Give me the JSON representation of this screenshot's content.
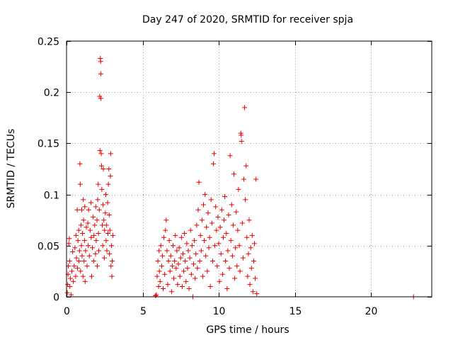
{
  "chart_data": {
    "type": "scatter",
    "title": "Day 247 of 2020, SRMTID for receiver spja",
    "xlabel": "GPS time / hours",
    "ylabel": "SRMTID / TECUs",
    "xlim": [
      0,
      24
    ],
    "ylim": [
      0,
      0.25
    ],
    "xticks": [
      0,
      5,
      10,
      15,
      20
    ],
    "yticks": [
      0,
      0.05,
      0.1,
      0.15,
      0.2,
      0.25
    ],
    "xtick_labels": [
      "0",
      "5",
      "10",
      "15",
      "20"
    ],
    "ytick_labels": [
      "0",
      "0.05",
      "0.1",
      "0.15",
      "0.2",
      "0.25"
    ],
    "grid": true,
    "grid_style": "dotted",
    "marker": "plus",
    "series": [
      {
        "color": "#e60000",
        "points": [
          [
            0.05,
            0.004
          ],
          [
            0.08,
            0.012
          ],
          [
            0.1,
            0.022
          ],
          [
            0.12,
            0.03
          ],
          [
            0.15,
            0.052
          ],
          [
            0.18,
            0.057
          ],
          [
            0.2,
            0.035
          ],
          [
            0.22,
            0.01
          ],
          [
            0.25,
            0.018
          ],
          [
            0.3,
            0.002
          ],
          [
            0.35,
            0.025
          ],
          [
            0.4,
            0.044
          ],
          [
            0.45,
            0.015
          ],
          [
            0.5,
            0.03
          ],
          [
            0.55,
            0.048
          ],
          [
            0.6,
            0.02
          ],
          [
            0.62,
            0.06
          ],
          [
            0.65,
            0.038
          ],
          [
            0.7,
            0.085
          ],
          [
            0.72,
            0.028
          ],
          [
            0.75,
            0.055
          ],
          [
            0.8,
            0.065
          ],
          [
            0.82,
            0.035
          ],
          [
            0.85,
            0.045
          ],
          [
            0.88,
            0.13
          ],
          [
            0.9,
            0.11
          ],
          [
            0.92,
            0.025
          ],
          [
            0.95,
            0.07
          ],
          [
            0.98,
            0.05
          ],
          [
            1.0,
            0.085
          ],
          [
            1.02,
            0.04
          ],
          [
            1.05,
            0.062
          ],
          [
            1.08,
            0.02
          ],
          [
            1.1,
            0.095
          ],
          [
            1.12,
            0.075
          ],
          [
            1.15,
            0.035
          ],
          [
            1.18,
            0.055
          ],
          [
            1.2,
            0.088
          ],
          [
            1.22,
            0.015
          ],
          [
            1.25,
            0.045
          ],
          [
            1.3,
            0.068
          ],
          [
            1.35,
            0.03
          ],
          [
            1.4,
            0.072
          ],
          [
            1.42,
            0.05
          ],
          [
            1.45,
            0.085
          ],
          [
            1.5,
            0.04
          ],
          [
            1.55,
            0.065
          ],
          [
            1.6,
            0.092
          ],
          [
            1.62,
            0.058
          ],
          [
            1.65,
            0.02
          ],
          [
            1.7,
            0.048
          ],
          [
            1.75,
            0.078
          ],
          [
            1.78,
            0.035
          ],
          [
            1.8,
            0.06
          ],
          [
            1.85,
            0.07
          ],
          [
            1.9,
            0.042
          ],
          [
            1.92,
            0.088
          ],
          [
            1.95,
            0.055
          ],
          [
            2.0,
            0.075
          ],
          [
            2.02,
            0.03
          ],
          [
            2.05,
            0.095
          ],
          [
            2.08,
            0.11
          ],
          [
            2.1,
            0.062
          ],
          [
            2.12,
            0.045
          ],
          [
            2.15,
            0.085
          ],
          [
            2.18,
            0.196
          ],
          [
            2.2,
            0.143
          ],
          [
            2.22,
            0.233
          ],
          [
            2.24,
            0.23
          ],
          [
            2.25,
            0.218
          ],
          [
            2.26,
            0.194
          ],
          [
            2.28,
            0.14
          ],
          [
            2.3,
            0.128
          ],
          [
            2.32,
            0.105
          ],
          [
            2.35,
            0.07
          ],
          [
            2.38,
            0.05
          ],
          [
            2.4,
            0.09
          ],
          [
            2.42,
            0.125
          ],
          [
            2.45,
            0.075
          ],
          [
            2.48,
            0.038
          ],
          [
            2.5,
            0.065
          ],
          [
            2.55,
            0.082
          ],
          [
            2.58,
            0.1
          ],
          [
            2.6,
            0.055
          ],
          [
            2.62,
            0.07
          ],
          [
            2.65,
            0.045
          ],
          [
            2.7,
            0.092
          ],
          [
            2.72,
            0.062
          ],
          [
            2.75,
            0.11
          ],
          [
            2.78,
            0.125
          ],
          [
            2.8,
            0.08
          ],
          [
            2.82,
            0.042
          ],
          [
            2.85,
            0.065
          ],
          [
            2.88,
            0.118
          ],
          [
            2.9,
            0.14
          ],
          [
            2.92,
            0.03
          ],
          [
            2.95,
            0.05
          ],
          [
            2.98,
            0.02
          ],
          [
            3.0,
            0.035
          ],
          [
            3.05,
            0.06
          ],
          [
            5.85,
            0.001
          ],
          [
            5.9,
            0.002
          ],
          [
            5.95,
            0.02
          ],
          [
            6.0,
            0.035
          ],
          [
            6.05,
            0.01
          ],
          [
            6.08,
            0.045
          ],
          [
            6.1,
            0.025
          ],
          [
            6.15,
            0.015
          ],
          [
            6.2,
            0.05
          ],
          [
            6.25,
            0.03
          ],
          [
            6.3,
            0.04
          ],
          [
            6.35,
            0.008
          ],
          [
            6.4,
            0.058
          ],
          [
            6.45,
            0.022
          ],
          [
            6.5,
            0.065
          ],
          [
            6.55,
            0.075
          ],
          [
            6.6,
            0.045
          ],
          [
            6.65,
            0.012
          ],
          [
            6.7,
            0.035
          ],
          [
            6.75,
            0.055
          ],
          [
            6.8,
            0.025
          ],
          [
            6.85,
            0.04
          ],
          [
            6.9,
            0.005
          ],
          [
            6.95,
            0.03
          ],
          [
            7.0,
            0.05
          ],
          [
            7.05,
            0.018
          ],
          [
            7.1,
            0.035
          ],
          [
            7.15,
            0.06
          ],
          [
            7.2,
            0.028
          ],
          [
            7.25,
            0.045
          ],
          [
            7.3,
            0.012
          ],
          [
            7.35,
            0.032
          ],
          [
            7.4,
            0.048
          ],
          [
            7.45,
            0.02
          ],
          [
            7.5,
            0.038
          ],
          [
            7.55,
            0.058
          ],
          [
            7.6,
            0.01
          ],
          [
            7.65,
            0.042
          ],
          [
            7.7,
            0.025
          ],
          [
            7.75,
            0.062
          ],
          [
            7.8,
            0.035
          ],
          [
            7.85,
            0.015
          ],
          [
            7.9,
            0.052
          ],
          [
            7.95,
            0.028
          ],
          [
            8.0,
            0.045
          ],
          [
            8.05,
            0.008
          ],
          [
            8.1,
            0.038
          ],
          [
            8.15,
            0.065
          ],
          [
            8.2,
            0.022
          ],
          [
            8.25,
            0.05
          ],
          [
            8.3,
            0.0
          ],
          [
            8.35,
            0.032
          ],
          [
            8.4,
            0.055
          ],
          [
            8.45,
            0.018
          ],
          [
            8.5,
            0.042
          ],
          [
            8.55,
            0.07
          ],
          [
            8.6,
            0.028
          ],
          [
            8.65,
            0.085
          ],
          [
            8.7,
            0.112
          ],
          [
            8.75,
            0.035
          ],
          [
            8.8,
            0.06
          ],
          [
            8.85,
            0.045
          ],
          [
            8.9,
            0.075
          ],
          [
            8.95,
            0.02
          ],
          [
            9.0,
            0.09
          ],
          [
            9.05,
            0.055
          ],
          [
            9.1,
            0.1
          ],
          [
            9.15,
            0.04
          ],
          [
            9.2,
            0.068
          ],
          [
            9.25,
            0.025
          ],
          [
            9.3,
            0.082
          ],
          [
            9.35,
            0.048
          ],
          [
            9.4,
            0.058
          ],
          [
            9.45,
            0.01
          ],
          [
            9.5,
            0.095
          ],
          [
            9.55,
            0.072
          ],
          [
            9.6,
            0.035
          ],
          [
            9.65,
            0.13
          ],
          [
            9.7,
            0.14
          ],
          [
            9.75,
            0.05
          ],
          [
            9.8,
            0.088
          ],
          [
            9.85,
            0.065
          ],
          [
            9.9,
            0.03
          ],
          [
            9.95,
            0.078
          ],
          [
            10.0,
            0.052
          ],
          [
            10.05,
            0.015
          ],
          [
            10.1,
            0.068
          ],
          [
            10.15,
            0.042
          ],
          [
            10.2,
            0.085
          ],
          [
            10.25,
            0.022
          ],
          [
            10.3,
            0.058
          ],
          [
            10.35,
            0.075
          ],
          [
            10.4,
            0.098
          ],
          [
            10.45,
            0.035
          ],
          [
            10.5,
            0.062
          ],
          [
            10.55,
            0.008
          ],
          [
            10.6,
            0.045
          ],
          [
            10.65,
            0.08
          ],
          [
            10.7,
            0.028
          ],
          [
            10.75,
            0.138
          ],
          [
            10.8,
            0.055
          ],
          [
            10.85,
            0.09
          ],
          [
            10.9,
            0.04
          ],
          [
            10.95,
            0.07
          ],
          [
            11.0,
            0.12
          ],
          [
            11.05,
            0.018
          ],
          [
            11.1,
            0.048
          ],
          [
            11.15,
            0.083
          ],
          [
            11.2,
            0.03
          ],
          [
            11.25,
            0.065
          ],
          [
            11.3,
            0.105
          ],
          [
            11.35,
            0.05
          ],
          [
            11.4,
            0.025
          ],
          [
            11.45,
            0.16
          ],
          [
            11.48,
            0.158
          ],
          [
            11.5,
            0.152
          ],
          [
            11.55,
            0.072
          ],
          [
            11.6,
            0.038
          ],
          [
            11.65,
            0.115
          ],
          [
            11.7,
            0.185
          ],
          [
            11.75,
            0.095
          ],
          [
            11.8,
            0.128
          ],
          [
            11.85,
            0.058
          ],
          [
            11.9,
            0.02
          ],
          [
            11.95,
            0.042
          ],
          [
            12.0,
            0.075
          ],
          [
            12.05,
            0.012
          ],
          [
            12.1,
            0.048
          ],
          [
            12.15,
            0.028
          ],
          [
            12.2,
            0.06
          ],
          [
            12.25,
            0.005
          ],
          [
            12.3,
            0.035
          ],
          [
            12.35,
            0.052
          ],
          [
            12.4,
            0.018
          ],
          [
            12.45,
            0.115
          ],
          [
            12.5,
            0.003
          ],
          [
            22.8,
            0.0
          ]
        ]
      }
    ]
  }
}
